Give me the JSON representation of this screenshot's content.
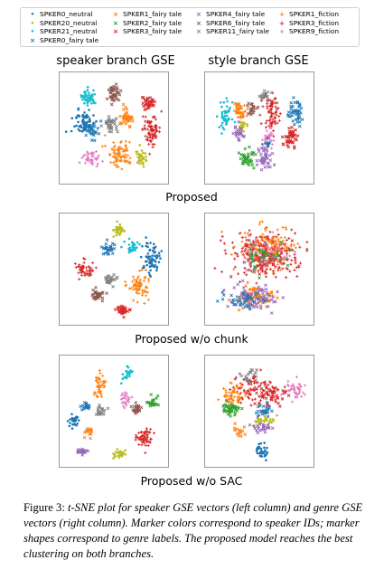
{
  "legend": [
    {
      "label": "SPKER0_neutral",
      "color": "#1f77b4",
      "marker": "dot"
    },
    {
      "label": "SPKER20_neutral",
      "color": "#bcbd22",
      "marker": "dot"
    },
    {
      "label": "SPKER21_neutral",
      "color": "#17becf",
      "marker": "dot"
    },
    {
      "label": "SPKER0_fairy tale",
      "color": "#1f77b4",
      "marker": "x"
    },
    {
      "label": "SPKER1_fairy tale",
      "color": "#ff7f0e",
      "marker": "x"
    },
    {
      "label": "SPKER2_fairy tale",
      "color": "#2ca02c",
      "marker": "x"
    },
    {
      "label": "SPKER3_fairy tale",
      "color": "#d62728",
      "marker": "x"
    },
    {
      "label": "SPKER4_fairy tale",
      "color": "#9467bd",
      "marker": "x"
    },
    {
      "label": "SPKER6_fairy tale",
      "color": "#8c564b",
      "marker": "x"
    },
    {
      "label": "SPKER11_fairy tale",
      "color": "#7f7f7f",
      "marker": "x"
    },
    {
      "label": "SPKER1_fiction",
      "color": "#ff7f0e",
      "marker": "plus"
    },
    {
      "label": "SPKER3_fiction",
      "color": "#d62728",
      "marker": "plus"
    },
    {
      "label": "SPKER9_fiction",
      "color": "#e377c2",
      "marker": "plus"
    }
  ],
  "column_titles": [
    "speaker branch GSE",
    "style branch GSE"
  ],
  "row_labels": [
    "Proposed",
    "Proposed w/o chunk",
    "Proposed w/o SAC"
  ],
  "caption": {
    "prefix": "Figure 3: ",
    "body": "t-SNE plot for speaker GSE vectors (left column) and genre GSE vectors (right column). Marker colors correspond to speaker IDs; marker shapes correspond to genre labels. The proposed model reaches the best clustering on both branches."
  },
  "chart_data": [
    {
      "type": "scatter",
      "panel": "Proposed / speaker branch GSE",
      "axes": "hidden",
      "clusters": [
        {
          "legend_index": 2,
          "center": [
            0.25,
            0.2
          ],
          "spread": [
            0.07,
            0.07
          ],
          "n": 45
        },
        {
          "legend_index": 8,
          "center": [
            0.5,
            0.16
          ],
          "spread": [
            0.06,
            0.08
          ],
          "n": 40
        },
        {
          "legend_index": 6,
          "center": [
            0.85,
            0.25
          ],
          "spread": [
            0.06,
            0.06
          ],
          "n": 35
        },
        {
          "legend_index": 0,
          "center": [
            0.2,
            0.46
          ],
          "spread": [
            0.1,
            0.12
          ],
          "n": 70
        },
        {
          "legend_index": 3,
          "center": [
            0.28,
            0.52
          ],
          "spread": [
            0.06,
            0.08
          ],
          "n": 30
        },
        {
          "legend_index": 9,
          "center": [
            0.47,
            0.47
          ],
          "spread": [
            0.06,
            0.07
          ],
          "n": 35
        },
        {
          "legend_index": 4,
          "center": [
            0.63,
            0.4
          ],
          "spread": [
            0.06,
            0.07
          ],
          "n": 35
        },
        {
          "legend_index": 11,
          "center": [
            0.88,
            0.52
          ],
          "spread": [
            0.08,
            0.13
          ],
          "n": 80
        },
        {
          "legend_index": 10,
          "center": [
            0.56,
            0.74
          ],
          "spread": [
            0.12,
            0.12
          ],
          "n": 80
        },
        {
          "legend_index": 12,
          "center": [
            0.28,
            0.8
          ],
          "spread": [
            0.08,
            0.07
          ],
          "n": 40
        },
        {
          "legend_index": 1,
          "center": [
            0.78,
            0.8
          ],
          "spread": [
            0.06,
            0.06
          ],
          "n": 35
        }
      ]
    },
    {
      "type": "scatter",
      "panel": "Proposed / style branch GSE",
      "axes": "hidden",
      "clusters": [
        {
          "legend_index": 2,
          "center": [
            0.15,
            0.38
          ],
          "spread": [
            0.06,
            0.14
          ],
          "n": 45
        },
        {
          "legend_index": 4,
          "center": [
            0.28,
            0.3
          ],
          "spread": [
            0.05,
            0.06
          ],
          "n": 20
        },
        {
          "legend_index": 10,
          "center": [
            0.33,
            0.35
          ],
          "spread": [
            0.05,
            0.07
          ],
          "n": 20
        },
        {
          "legend_index": 1,
          "center": [
            0.33,
            0.48
          ],
          "spread": [
            0.05,
            0.07
          ],
          "n": 25
        },
        {
          "legend_index": 8,
          "center": [
            0.43,
            0.32
          ],
          "spread": [
            0.05,
            0.07
          ],
          "n": 20
        },
        {
          "legend_index": 7,
          "center": [
            0.3,
            0.55
          ],
          "spread": [
            0.06,
            0.07
          ],
          "n": 25
        },
        {
          "legend_index": 11,
          "center": [
            0.62,
            0.35
          ],
          "spread": [
            0.07,
            0.18
          ],
          "n": 80
        },
        {
          "legend_index": 12,
          "center": [
            0.58,
            0.6
          ],
          "spread": [
            0.05,
            0.1
          ],
          "n": 35
        },
        {
          "legend_index": 3,
          "center": [
            0.86,
            0.35
          ],
          "spread": [
            0.06,
            0.12
          ],
          "n": 45
        },
        {
          "legend_index": 6,
          "center": [
            0.82,
            0.58
          ],
          "spread": [
            0.07,
            0.1
          ],
          "n": 45
        },
        {
          "legend_index": 9,
          "center": [
            0.55,
            0.18
          ],
          "spread": [
            0.06,
            0.05
          ],
          "n": 15
        },
        {
          "legend_index": 5,
          "center": [
            0.38,
            0.8
          ],
          "spread": [
            0.07,
            0.08
          ],
          "n": 40
        },
        {
          "legend_index": 7,
          "center": [
            0.55,
            0.8
          ],
          "spread": [
            0.07,
            0.09
          ],
          "n": 40
        },
        {
          "legend_index": 0,
          "center": [
            0.58,
            0.65
          ],
          "spread": [
            0.03,
            0.04
          ],
          "n": 10
        }
      ]
    },
    {
      "type": "scatter",
      "panel": "Proposed w/o chunk / speaker branch GSE",
      "axes": "hidden",
      "clusters": [
        {
          "legend_index": 1,
          "center": [
            0.55,
            0.12
          ],
          "spread": [
            0.06,
            0.05
          ],
          "n": 30
        },
        {
          "legend_index": 3,
          "center": [
            0.45,
            0.3
          ],
          "spread": [
            0.06,
            0.06
          ],
          "n": 30
        },
        {
          "legend_index": 2,
          "center": [
            0.7,
            0.28
          ],
          "spread": [
            0.06,
            0.05
          ],
          "n": 30
        },
        {
          "legend_index": 0,
          "center": [
            0.88,
            0.4
          ],
          "spread": [
            0.08,
            0.13
          ],
          "n": 70
        },
        {
          "legend_index": 11,
          "center": [
            0.2,
            0.5
          ],
          "spread": [
            0.08,
            0.08
          ],
          "n": 50
        },
        {
          "legend_index": 9,
          "center": [
            0.46,
            0.6
          ],
          "spread": [
            0.05,
            0.05
          ],
          "n": 25
        },
        {
          "legend_index": 10,
          "center": [
            0.76,
            0.66
          ],
          "spread": [
            0.1,
            0.11
          ],
          "n": 70
        },
        {
          "legend_index": 8,
          "center": [
            0.33,
            0.75
          ],
          "spread": [
            0.06,
            0.06
          ],
          "n": 35
        },
        {
          "legend_index": 6,
          "center": [
            0.59,
            0.9
          ],
          "spread": [
            0.06,
            0.05
          ],
          "n": 35
        }
      ]
    },
    {
      "type": "scatter",
      "panel": "Proposed w/o chunk / style branch GSE",
      "axes": "hidden",
      "clusters": [
        {
          "legend_index": 11,
          "center": [
            0.55,
            0.35
          ],
          "spread": [
            0.3,
            0.2
          ],
          "n": 220
        },
        {
          "legend_index": 10,
          "center": [
            0.58,
            0.3
          ],
          "spread": [
            0.25,
            0.2
          ],
          "n": 140
        },
        {
          "legend_index": 12,
          "center": [
            0.6,
            0.35
          ],
          "spread": [
            0.22,
            0.15
          ],
          "n": 60
        },
        {
          "legend_index": 6,
          "center": [
            0.55,
            0.4
          ],
          "spread": [
            0.18,
            0.15
          ],
          "n": 40
        },
        {
          "legend_index": 9,
          "center": [
            0.5,
            0.4
          ],
          "spread": [
            0.18,
            0.15
          ],
          "n": 25
        },
        {
          "legend_index": 5,
          "center": [
            0.55,
            0.38
          ],
          "spread": [
            0.18,
            0.15
          ],
          "n": 25
        },
        {
          "legend_index": 4,
          "center": [
            0.45,
            0.78
          ],
          "spread": [
            0.2,
            0.1
          ],
          "n": 70
        },
        {
          "legend_index": 7,
          "center": [
            0.45,
            0.78
          ],
          "spread": [
            0.2,
            0.1
          ],
          "n": 70
        },
        {
          "legend_index": 3,
          "center": [
            0.35,
            0.8
          ],
          "spread": [
            0.2,
            0.08
          ],
          "n": 40
        }
      ]
    },
    {
      "type": "scatter",
      "panel": "Proposed w/o SAC / speaker branch GSE",
      "axes": "hidden",
      "clusters": [
        {
          "legend_index": 10,
          "center": [
            0.35,
            0.25
          ],
          "spread": [
            0.05,
            0.12
          ],
          "n": 45
        },
        {
          "legend_index": 2,
          "center": [
            0.63,
            0.13
          ],
          "spread": [
            0.05,
            0.05
          ],
          "n": 25
        },
        {
          "legend_index": 12,
          "center": [
            0.62,
            0.38
          ],
          "spread": [
            0.04,
            0.07
          ],
          "n": 25
        },
        {
          "legend_index": 3,
          "center": [
            0.22,
            0.45
          ],
          "spread": [
            0.05,
            0.05
          ],
          "n": 20
        },
        {
          "legend_index": 5,
          "center": [
            0.88,
            0.42
          ],
          "spread": [
            0.05,
            0.05
          ],
          "n": 25
        },
        {
          "legend_index": 9,
          "center": [
            0.35,
            0.5
          ],
          "spread": [
            0.05,
            0.05
          ],
          "n": 20
        },
        {
          "legend_index": 8,
          "center": [
            0.73,
            0.48
          ],
          "spread": [
            0.05,
            0.05
          ],
          "n": 25
        },
        {
          "legend_index": 0,
          "center": [
            0.1,
            0.6
          ],
          "spread": [
            0.05,
            0.06
          ],
          "n": 25
        },
        {
          "legend_index": 11,
          "center": [
            0.8,
            0.75
          ],
          "spread": [
            0.08,
            0.08
          ],
          "n": 60
        },
        {
          "legend_index": 4,
          "center": [
            0.25,
            0.7
          ],
          "spread": [
            0.04,
            0.05
          ],
          "n": 15
        },
        {
          "legend_index": 1,
          "center": [
            0.55,
            0.92
          ],
          "spread": [
            0.05,
            0.04
          ],
          "n": 25
        },
        {
          "legend_index": 7,
          "center": [
            0.18,
            0.9
          ],
          "spread": [
            0.05,
            0.04
          ],
          "n": 25
        }
      ]
    },
    {
      "type": "scatter",
      "panel": "Proposed w/o SAC / style branch GSE",
      "axes": "hidden",
      "clusters": [
        {
          "legend_index": 9,
          "center": [
            0.4,
            0.15
          ],
          "spread": [
            0.08,
            0.06
          ],
          "n": 20
        },
        {
          "legend_index": 11,
          "center": [
            0.5,
            0.3
          ],
          "spread": [
            0.28,
            0.12
          ],
          "n": 90
        },
        {
          "legend_index": 6,
          "center": [
            0.62,
            0.35
          ],
          "spread": [
            0.15,
            0.1
          ],
          "n": 40
        },
        {
          "legend_index": 12,
          "center": [
            0.85,
            0.3
          ],
          "spread": [
            0.08,
            0.08
          ],
          "n": 40
        },
        {
          "legend_index": 10,
          "center": [
            0.22,
            0.35
          ],
          "spread": [
            0.1,
            0.12
          ],
          "n": 60
        },
        {
          "legend_index": 5,
          "center": [
            0.22,
            0.48
          ],
          "spread": [
            0.08,
            0.06
          ],
          "n": 40
        },
        {
          "legend_index": 3,
          "center": [
            0.55,
            0.5
          ],
          "spread": [
            0.08,
            0.05
          ],
          "n": 25
        },
        {
          "legend_index": 1,
          "center": [
            0.55,
            0.58
          ],
          "spread": [
            0.1,
            0.05
          ],
          "n": 30
        },
        {
          "legend_index": 7,
          "center": [
            0.53,
            0.66
          ],
          "spread": [
            0.08,
            0.05
          ],
          "n": 25
        },
        {
          "legend_index": 4,
          "center": [
            0.3,
            0.7
          ],
          "spread": [
            0.06,
            0.06
          ],
          "n": 15
        },
        {
          "legend_index": 0,
          "center": [
            0.54,
            0.9
          ],
          "spread": [
            0.06,
            0.06
          ],
          "n": 35
        }
      ]
    }
  ]
}
